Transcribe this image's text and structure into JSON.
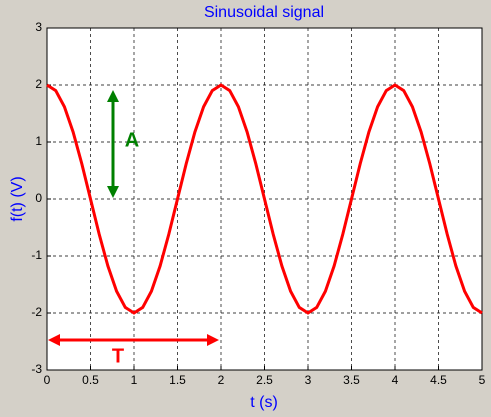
{
  "chart_data": {
    "type": "line",
    "title": "Sinusoidal signal",
    "x_label": "t (s)",
    "y_label": "f(t) (V)",
    "x": [
      0,
      0.1,
      0.2,
      0.3,
      0.4,
      0.5,
      0.6,
      0.7,
      0.8,
      0.9,
      1,
      1.1,
      1.2,
      1.3,
      1.4,
      1.5,
      1.6,
      1.7,
      1.8,
      1.9,
      2,
      2.1,
      2.2,
      2.3,
      2.4,
      2.5,
      2.6,
      2.7,
      2.8,
      2.9,
      3,
      3.1,
      3.2,
      3.3,
      3.4,
      3.5,
      3.6,
      3.7,
      3.8,
      3.9,
      4,
      4.1,
      4.2,
      4.3,
      4.4,
      4.5,
      4.6,
      4.7,
      4.8,
      4.9,
      5
    ],
    "series": [
      {
        "color": "#ff0000",
        "values": [
          2,
          1.902,
          1.618,
          1.176,
          0.618,
          0,
          -0.618,
          -1.176,
          -1.618,
          -1.902,
          -2,
          -1.902,
          -1.618,
          -1.176,
          -0.618,
          0,
          0.618,
          1.176,
          1.618,
          1.902,
          2,
          1.902,
          1.618,
          1.176,
          0.618,
          0,
          -0.618,
          -1.176,
          -1.618,
          -1.902,
          -2,
          -1.902,
          -1.618,
          -1.176,
          -0.618,
          0,
          0.618,
          1.176,
          1.618,
          1.902,
          2,
          1.902,
          1.618,
          1.176,
          0.618,
          0,
          -0.618,
          -1.176,
          -1.618,
          -1.902,
          -2
        ]
      }
    ],
    "xlim": [
      0,
      5
    ],
    "xticks": [
      0,
      0.5,
      1,
      1.5,
      2,
      2.5,
      3,
      3.5,
      4,
      4.5,
      5
    ],
    "ylim": [
      -3,
      3
    ],
    "yticks": [
      -3,
      -2,
      -1,
      0,
      1,
      2,
      3
    ],
    "grid": true,
    "annotations": [
      {
        "text": "A",
        "color": "#008000"
      },
      {
        "text": "T",
        "color": "#ff0000"
      }
    ]
  }
}
